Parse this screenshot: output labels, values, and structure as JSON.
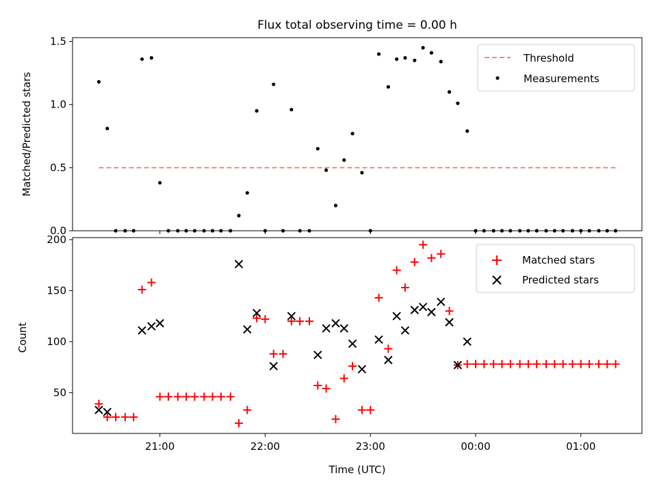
{
  "chart_data": {
    "type": "scatter",
    "title": "Flux total observing time = 0.00 h",
    "xlabel": "Time (UTC)",
    "x_tick_labels": [
      "21:00",
      "22:00",
      "23:00",
      "00:00",
      "01:00"
    ],
    "x_tick_values_hours": [
      21,
      22,
      23,
      24,
      25
    ],
    "x_range_hours": [
      20.17,
      25.58
    ],
    "times_hours": [
      20.42,
      20.5,
      20.58,
      20.67,
      20.75,
      20.83,
      20.92,
      21.0,
      21.08,
      21.17,
      21.25,
      21.33,
      21.42,
      21.5,
      21.58,
      21.67,
      21.75,
      21.83,
      21.92,
      22.0,
      22.08,
      22.17,
      22.25,
      22.33,
      22.42,
      22.5,
      22.58,
      22.67,
      22.75,
      22.83,
      22.92,
      23.0,
      23.08,
      23.17,
      23.25,
      23.33,
      23.42,
      23.5,
      23.58,
      23.67,
      23.75,
      23.83,
      23.92,
      24.0,
      24.08,
      24.17,
      24.25,
      24.33,
      24.42,
      24.5,
      24.58,
      24.67,
      24.75,
      24.83,
      24.92,
      25.0,
      25.08,
      25.17,
      25.25,
      25.33
    ],
    "panels": [
      {
        "ylabel": "Matched/Predicted stars",
        "ylim": [
          0,
          1.53
        ],
        "y_ticks": [
          0.0,
          0.5,
          1.0,
          1.5
        ],
        "y_tick_labels": [
          "0.0",
          "0.5",
          "1.0",
          "1.5"
        ],
        "legend_position": "upper right",
        "series": [
          {
            "name": "Threshold",
            "kind": "line",
            "style": "dashed",
            "color": "#ff8080",
            "x_range_hours": [
              20.42,
              25.33
            ],
            "value": 0.5
          },
          {
            "name": "Measurements",
            "kind": "scatter",
            "marker": "dot",
            "color": "#000000",
            "values": [
              1.18,
              0.81,
              0.0,
              0.0,
              0.0,
              1.36,
              1.37,
              0.38,
              0.0,
              0.0,
              0.0,
              0.0,
              0.0,
              0.0,
              0.0,
              0.0,
              0.12,
              0.3,
              0.95,
              0.0,
              1.16,
              0.0,
              0.96,
              0.0,
              0.0,
              0.65,
              0.48,
              0.2,
              0.56,
              0.77,
              0.46,
              0.0,
              1.4,
              1.14,
              1.36,
              1.37,
              1.35,
              1.45,
              1.41,
              1.34,
              1.1,
              1.01,
              0.79,
              0.0,
              0.0,
              0.0,
              0.0,
              0.0,
              0.0,
              0.0,
              0.0,
              0.0,
              0.0,
              0.0,
              0.0,
              0.0,
              0.0,
              0.0,
              0.0,
              0.0
            ]
          }
        ]
      },
      {
        "ylabel": "Count",
        "ylim": [
          10,
          202
        ],
        "y_ticks": [
          50,
          100,
          150,
          200
        ],
        "y_tick_labels": [
          "50",
          "100",
          "150",
          "200"
        ],
        "legend_position": "upper right",
        "series": [
          {
            "name": "Matched stars",
            "kind": "scatter",
            "marker": "plus",
            "color": "#ff0000",
            "values": [
              39,
              26,
              26,
              26,
              26,
              151,
              158,
              46,
              46,
              46,
              46,
              46,
              46,
              46,
              46,
              46,
              20,
              33,
              123,
              122,
              88,
              88,
              120,
              120,
              120,
              57,
              54,
              24,
              64,
              76,
              33,
              33,
              143,
              93,
              170,
              153,
              178,
              195,
              182,
              186,
              130,
              77,
              78,
              78,
              78,
              78,
              78,
              78,
              78,
              78,
              78,
              78,
              78,
              78,
              78,
              78,
              78,
              78,
              78,
              78
            ]
          },
          {
            "name": "Predicted stars",
            "kind": "scatter",
            "marker": "x",
            "color": "#000000",
            "times_hours": [
              20.42,
              20.5,
              20.83,
              20.92,
              21.0,
              21.75,
              21.83,
              21.92,
              22.08,
              22.25,
              22.5,
              22.58,
              22.67,
              22.75,
              22.83,
              22.92,
              23.08,
              23.17,
              23.25,
              23.33,
              23.42,
              23.5,
              23.58,
              23.67,
              23.75,
              23.83,
              23.92
            ],
            "values": [
              33,
              31,
              111,
              115,
              118,
              176,
              112,
              128,
              76,
              125,
              87,
              113,
              118,
              113,
              98,
              73,
              102,
              82,
              125,
              111,
              131,
              134,
              129,
              139,
              119,
              77,
              100
            ]
          }
        ]
      }
    ]
  }
}
